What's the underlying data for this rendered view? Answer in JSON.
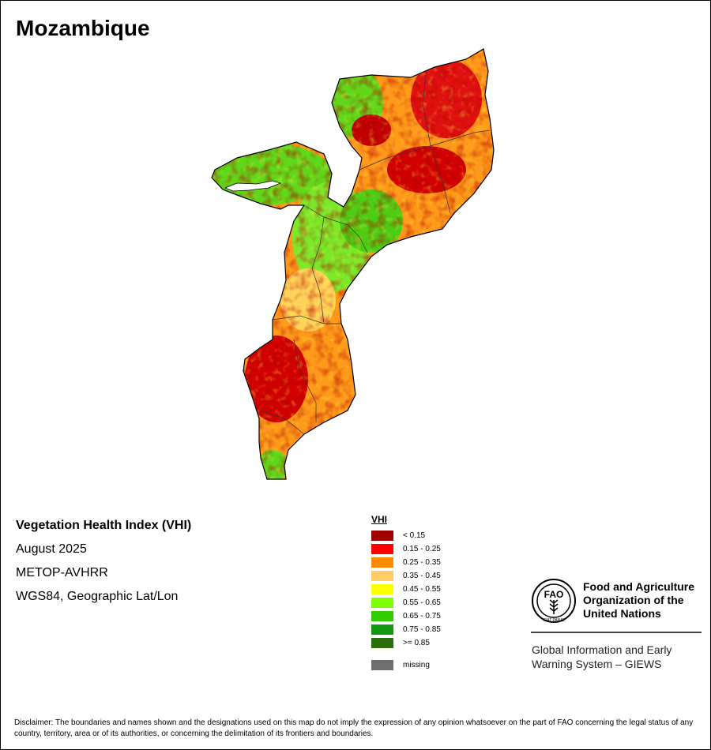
{
  "map": {
    "title": "Mozambique",
    "product": "Vegetation Health Index (VHI)",
    "date": "August 2025",
    "sensor": "METOP-AVHRR",
    "projection": "WGS84, Geographic Lat/Lon"
  },
  "legend": {
    "title": "VHI",
    "items": [
      {
        "label": "< 0.15",
        "color": "#a10000"
      },
      {
        "label": "0.15 - 0.25",
        "color": "#ff0000"
      },
      {
        "label": "0.25 - 0.35",
        "color": "#ff8c00"
      },
      {
        "label": "0.35 - 0.45",
        "color": "#ffcc66"
      },
      {
        "label": "0.45 - 0.55",
        "color": "#ffff00"
      },
      {
        "label": "0.55 - 0.65",
        "color": "#80ff00"
      },
      {
        "label": "0.65 - 0.75",
        "color": "#33cc00"
      },
      {
        "label": "0.75 - 0.85",
        "color": "#129912"
      },
      {
        "label": ">= 0.85",
        "color": "#2d6e0c"
      },
      {
        "label": "missing",
        "color": "#6e6e6e"
      }
    ]
  },
  "org": {
    "logo_letters": "FAO",
    "logo_motto": "FIAT PANIS",
    "name": "Food and Agriculture Organization of the United Nations",
    "system": "Global Information and Early Warning System – GIEWS"
  },
  "disclaimer": "Disclaimer: The boundaries and names shown and the designations used on this map do not imply the expression of any opinion whatsoever on the part of FAO concerning the legal status of any country, territory, area or of its authorities, or concerning the delimitation of its frontiers and boundaries.",
  "icons": {
    "logo": "fao-wheat-emblem-icon"
  }
}
